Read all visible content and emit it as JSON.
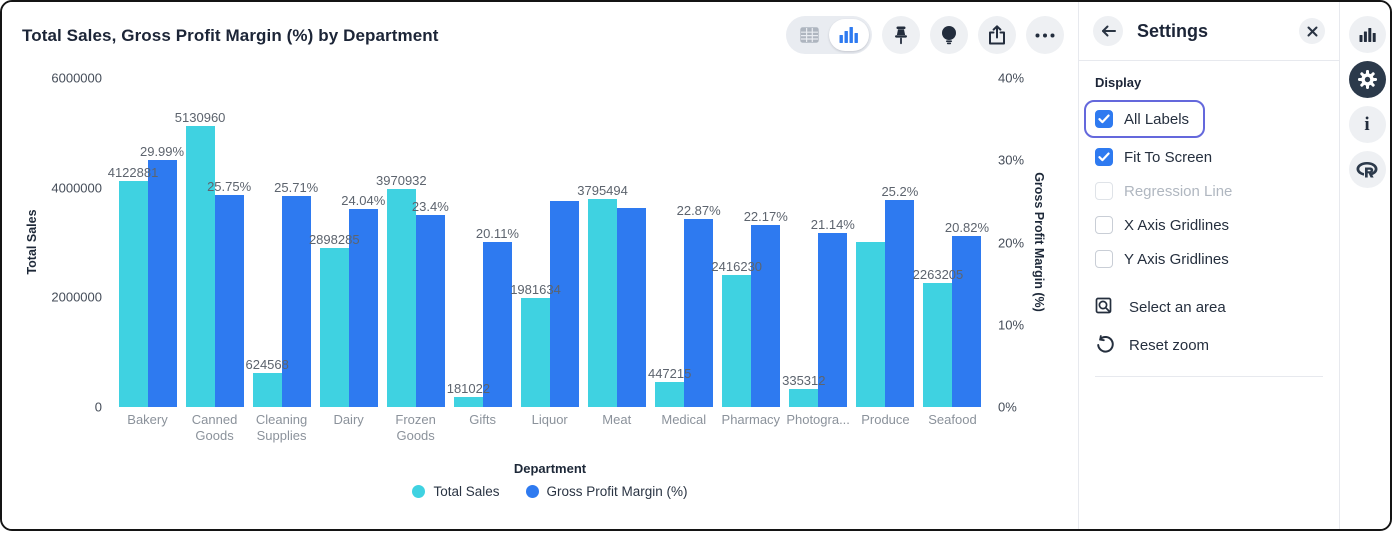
{
  "chart": {
    "title": "Total Sales, Gross Profit Margin (%) by Department"
  },
  "toolbar": {
    "icons": [
      "table-view-icon",
      "bar-chart-view-icon",
      "pin-icon",
      "lightbulb-icon",
      "share-icon",
      "ellipsis-icon"
    ],
    "active_view": "bar-chart"
  },
  "settings_panel": {
    "title": "Settings",
    "icons": [
      "back-arrow-icon",
      "close-icon"
    ],
    "section_label": "Display",
    "checkboxes": [
      {
        "label": "All Labels",
        "checked": true,
        "disabled": false,
        "focused": true
      },
      {
        "label": "Fit To Screen",
        "checked": true,
        "disabled": false,
        "focused": false
      },
      {
        "label": "Regression Line",
        "checked": false,
        "disabled": true,
        "focused": false
      },
      {
        "label": "X Axis Gridlines",
        "checked": false,
        "disabled": false,
        "focused": false
      },
      {
        "label": "Y Axis Gridlines",
        "checked": false,
        "disabled": false,
        "focused": false
      }
    ],
    "actions": [
      {
        "label": "Select an area",
        "icon": "select-area-icon"
      },
      {
        "label": "Reset zoom",
        "icon": "reset-zoom-icon"
      }
    ]
  },
  "rail": {
    "icons": [
      "bar-chart-icon",
      "gear-icon",
      "info-icon",
      "r-logo-icon"
    ],
    "active": "gear-icon"
  },
  "chart_data": {
    "type": "bar",
    "title": "Total Sales, Gross Profit Margin (%) by Department",
    "xlabel": "Department",
    "ylabel_left": "Total Sales",
    "ylabel_right": "Gross Profit Margin (%)",
    "y_left_max": 6000000,
    "y_left_ticks": [
      0,
      2000000,
      4000000,
      6000000
    ],
    "y_left_tick_labels": [
      "0",
      "2000000",
      "4000000",
      "6000000"
    ],
    "y_right_max": 40,
    "y_right_ticks": [
      0,
      10,
      20,
      30,
      40
    ],
    "y_right_tick_labels": [
      "0%",
      "10%",
      "20%",
      "30%",
      "40%"
    ],
    "gridlines": false,
    "legend_position": "bottom",
    "categories": [
      "Bakery",
      "Canned Goods",
      "Cleaning Supplies",
      "Dairy",
      "Frozen Goods",
      "Gifts",
      "Liquor",
      "Meat",
      "Medical",
      "Pharmacy",
      "Photogra...",
      "Produce",
      "Seafood"
    ],
    "series": [
      {
        "name": "Total Sales",
        "axis": "left",
        "color": "#3fd2e1",
        "values": [
          4122881,
          5130960,
          624568,
          2898285,
          3970932,
          181022,
          1981634,
          3795494,
          447215,
          2416230,
          335312,
          3000000,
          2263205
        ],
        "labels": [
          "4122881",
          "5130960",
          "624568",
          "2898285",
          "3970932",
          "181022",
          "1981634",
          "3795494",
          "447215",
          "2416230",
          "335312",
          "",
          "2263205"
        ]
      },
      {
        "name": "Gross Profit Margin (%)",
        "axis": "right",
        "color": "#2e7af0",
        "values": [
          29.99,
          25.75,
          25.71,
          24.04,
          23.4,
          20.11,
          25.0,
          24.2,
          22.87,
          22.17,
          21.14,
          25.2,
          20.82
        ],
        "labels": [
          "29.99%",
          "25.75%",
          "25.71%",
          "24.04%",
          "23.4%",
          "20.11%",
          "",
          "",
          "22.87%",
          "22.17%",
          "21.14%",
          "25.2%",
          "20.82%"
        ]
      }
    ]
  }
}
